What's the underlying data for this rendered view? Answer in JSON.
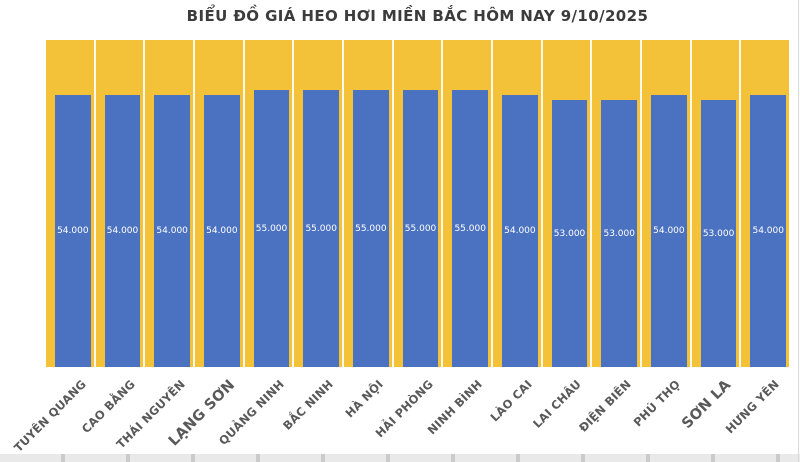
{
  "chart_data": {
    "type": "bar",
    "title": "BIỂU ĐỒ GIÁ HEO HƠI MIỀN BẮC HÔM NAY 9/10/2025",
    "categories": [
      "TUYÊN QUANG",
      "CAO BẰNG",
      "THÁI NGUYÊN",
      "LẠNG SƠN",
      "QUẢNG NINH",
      "BẮC NINH",
      "HÀ NỘI",
      "HẢI PHÒNG",
      "NINH BÌNH",
      "LÀO CAI",
      "LAI CHÂU",
      "ĐIỆN BIÊN",
      "PHÚ THỌ",
      "SƠN LA",
      "HƯNG YÊN"
    ],
    "values": [
      54000,
      54000,
      54000,
      54000,
      55000,
      55000,
      55000,
      55000,
      55000,
      54000,
      53000,
      53000,
      54000,
      53000,
      54000
    ],
    "value_labels": [
      "54.000",
      "54.000",
      "54.000",
      "54.000",
      "55.000",
      "55.000",
      "55.000",
      "55.000",
      "55.000",
      "54.000",
      "53.000",
      "53.000",
      "54.000",
      "53.000",
      "54.000"
    ],
    "xlabel": "",
    "ylabel": "",
    "ylim": [
      0,
      65000
    ],
    "legend": "none",
    "grid": "white vertical separators between categories",
    "emphasized_categories": [
      "LẠNG SƠN",
      "SƠN LA"
    ],
    "colors": {
      "bar": "#4b72c0",
      "plot_bg": "#f3c238",
      "separator": "#ffffff",
      "title": "#3c3c3c",
      "axis_label": "#595959",
      "value_label": "#ffffff"
    }
  }
}
